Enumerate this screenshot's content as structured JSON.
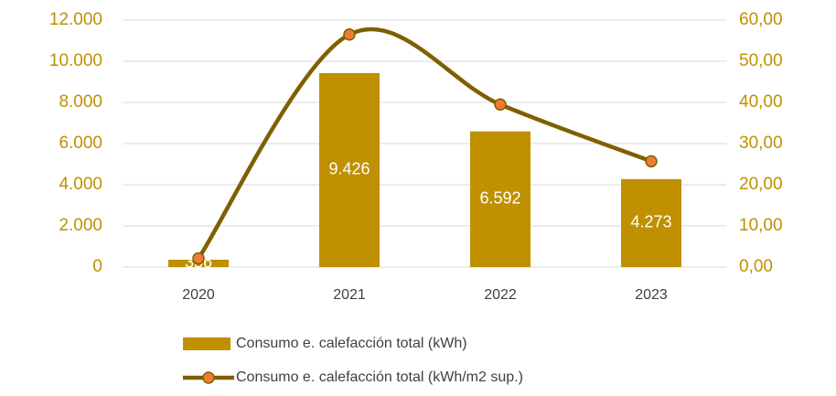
{
  "chart_data": {
    "type": "combo",
    "categories": [
      "2020",
      "2021",
      "2022",
      "2023"
    ],
    "series": [
      {
        "name": "Consumo e. calefacción total (kWh)",
        "type": "bar",
        "color": "#bf9000",
        "axis": "y",
        "values": [
          356,
          9426,
          6592,
          4273
        ],
        "value_labels": [
          "356",
          "9.426",
          "6.592",
          "4.273"
        ]
      },
      {
        "name": "Consumo e. calefacción total (kWh/m2 sup.)",
        "type": "line",
        "color": "#7f6000",
        "marker_color": "#ed7d31",
        "axis": "y2",
        "smooth": true,
        "values": [
          2.1,
          56.5,
          39.5,
          25.7
        ]
      }
    ],
    "ylim": [
      0,
      12000
    ],
    "yticks": [
      0,
      {
        "value": 2000,
        "label": "2.000"
      },
      {
        "value": 4000,
        "label": "4.000"
      },
      {
        "value": 6000,
        "label": "6.000"
      },
      {
        "value": 8000,
        "label": "8.000"
      },
      {
        "value": 10000,
        "label": "10.000"
      },
      {
        "value": 12000,
        "label": "12.000"
      }
    ],
    "y2lim": [
      0,
      60
    ],
    "y2ticks": [
      {
        "value": 0,
        "label": "0,00"
      },
      {
        "value": 10,
        "label": "10,00"
      },
      {
        "value": 20,
        "label": "20,00"
      },
      {
        "value": 30,
        "label": "30,00"
      },
      {
        "value": 40,
        "label": "40,00"
      },
      {
        "value": 50,
        "label": "50,00"
      },
      {
        "value": 60,
        "label": "60,00"
      }
    ],
    "grid": true,
    "legend": "bottom"
  }
}
